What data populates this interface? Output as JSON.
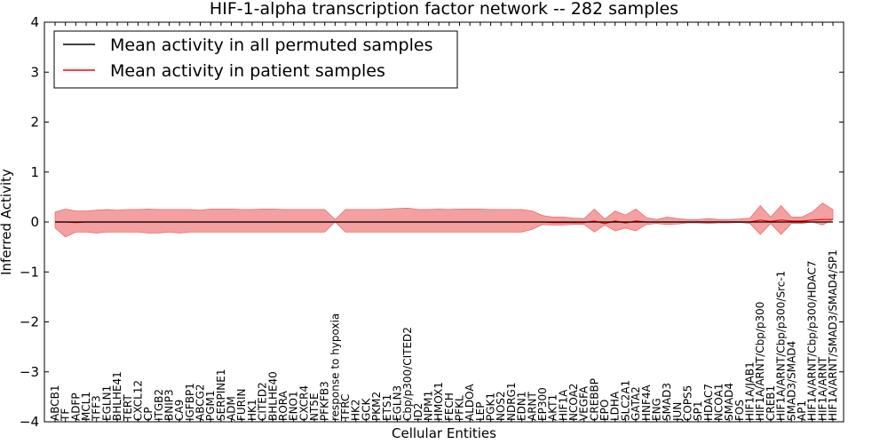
{
  "chart_data": {
    "type": "area",
    "title": "HIF-1-alpha transcription factor network -- 282 samples",
    "xlabel": "Cellular Entities",
    "ylabel": "Inferred Activity",
    "ylim": [
      -4,
      4
    ],
    "yticks": [
      -4,
      -3,
      -2,
      -1,
      0,
      1,
      2,
      3,
      4
    ],
    "ytick_labels": [
      "−4",
      "−3",
      "−2",
      "−1",
      "0",
      "1",
      "2",
      "3",
      "4"
    ],
    "grid": false,
    "legend_position": "top-left",
    "colors": {
      "permuted": "#000000",
      "patient": "#ff0000",
      "band": "#f08080",
      "perm_band": "#c8c8c8"
    },
    "categories": [
      "ABCB1",
      "TF",
      "ADFP",
      "MCL1",
      "TFF3",
      "EGLN1",
      "BHLHE41",
      "TERT",
      "CXCL12",
      "CP",
      "ITGB2",
      "BNIP3",
      "CA9",
      "IGFBP1",
      "ABCG2",
      "PGM1",
      "SERPINE1",
      "ADM",
      "FURIN",
      "HK1",
      "CITED2",
      "BHLHE40",
      "RORA",
      "ENO1",
      "CXCR4",
      "NT5E",
      "PFKFB3",
      "response to hypoxia",
      "TFRC",
      "HK2",
      "GCK",
      "PKM2",
      "ETS1",
      "EGLN3",
      "Cbp/p300/CITED2",
      "ID2",
      "NPM1",
      "HMOX1",
      "FECH",
      "PFKL",
      "ALDOA",
      "LEP",
      "PGK1",
      "NOS2",
      "NDRG1",
      "EDN1",
      "ARNT",
      "EP300",
      "AKT1",
      "HIF1A",
      "NCOA2",
      "VEGFA",
      "CREBBP",
      "EPO",
      "LDHA",
      "SLC2A1",
      "GATA2",
      "HNF4A",
      "ENG",
      "SMAD3",
      "JUN",
      "COPS5",
      "SP1",
      "HDAC7",
      "NCOA1",
      "SMAD4",
      "FOS",
      "HIF1A/JAB1",
      "HIF1A/ARNT/Cbp/p300",
      "CREB1",
      "HIF1A/ARNT/Cbp/p300/Src-1",
      "SMAD3/SMAD4",
      "AP1",
      "HIF1A/ARNT/Cbp/p300/HDAC7",
      "HIF1A/ARNT",
      "HIF1A/ARNT/SMAD3/SMAD4/SP1"
    ],
    "series": [
      {
        "name": "Mean activity in all permuted samples",
        "values": [
          0.0,
          0.0,
          0.0,
          0.0,
          0.0,
          0.0,
          0.0,
          0.0,
          0.0,
          0.0,
          0.0,
          0.0,
          0.0,
          0.0,
          0.0,
          0.0,
          0.0,
          0.0,
          0.0,
          0.0,
          0.0,
          0.0,
          0.0,
          0.0,
          0.0,
          0.0,
          0.0,
          0.0,
          0.0,
          0.0,
          0.0,
          0.0,
          0.0,
          0.0,
          0.0,
          0.0,
          0.0,
          0.0,
          0.0,
          0.0,
          0.0,
          0.0,
          0.0,
          0.0,
          0.0,
          0.0,
          0.0,
          0.0,
          0.0,
          0.0,
          0.0,
          0.0,
          0.0,
          0.0,
          0.0,
          0.0,
          0.0,
          0.0,
          0.0,
          0.0,
          0.0,
          0.0,
          0.0,
          0.0,
          0.0,
          0.0,
          0.0,
          0.0,
          0.0,
          0.0,
          0.0,
          0.0,
          0.0,
          0.0,
          0.0,
          0.0
        ]
      },
      {
        "name": "Mean activity in patient samples",
        "values": [
          0.0,
          0.0,
          -0.01,
          0.0,
          0.0,
          0.0,
          0.0,
          0.0,
          0.0,
          0.0,
          0.0,
          0.0,
          0.0,
          0.0,
          0.0,
          0.0,
          0.0,
          0.0,
          0.0,
          0.0,
          0.0,
          0.0,
          0.0,
          0.0,
          0.0,
          0.0,
          0.0,
          0.0,
          0.0,
          0.0,
          0.0,
          0.0,
          0.0,
          0.0,
          0.0,
          0.0,
          0.0,
          0.0,
          0.0,
          0.0,
          0.0,
          0.0,
          0.0,
          0.0,
          0.0,
          0.0,
          0.0,
          0.0,
          -0.01,
          -0.01,
          -0.01,
          -0.01,
          0.02,
          -0.03,
          0.02,
          -0.02,
          0.02,
          0.0,
          0.0,
          0.0,
          0.0,
          0.0,
          0.0,
          0.0,
          0.0,
          0.0,
          0.0,
          0.0,
          0.04,
          0.01,
          0.04,
          0.02,
          0.02,
          0.04,
          0.05,
          0.05
        ],
        "upper": [
          0.2,
          0.26,
          0.22,
          0.22,
          0.24,
          0.25,
          0.24,
          0.25,
          0.25,
          0.26,
          0.25,
          0.25,
          0.25,
          0.25,
          0.24,
          0.26,
          0.26,
          0.26,
          0.25,
          0.25,
          0.26,
          0.26,
          0.25,
          0.25,
          0.25,
          0.25,
          0.25,
          0.05,
          0.25,
          0.25,
          0.25,
          0.25,
          0.26,
          0.27,
          0.28,
          0.25,
          0.25,
          0.26,
          0.25,
          0.26,
          0.26,
          0.26,
          0.25,
          0.25,
          0.25,
          0.25,
          0.22,
          0.13,
          0.1,
          0.1,
          0.08,
          0.07,
          0.26,
          0.06,
          0.22,
          0.14,
          0.26,
          0.09,
          0.05,
          0.1,
          0.07,
          0.05,
          0.05,
          0.07,
          0.05,
          0.05,
          0.06,
          0.08,
          0.33,
          0.1,
          0.33,
          0.1,
          0.1,
          0.2,
          0.38,
          0.25
        ],
        "lower": [
          -0.12,
          -0.3,
          -0.2,
          -0.2,
          -0.22,
          -0.2,
          -0.2,
          -0.2,
          -0.2,
          -0.22,
          -0.22,
          -0.2,
          -0.22,
          -0.2,
          -0.2,
          -0.2,
          -0.2,
          -0.2,
          -0.2,
          -0.2,
          -0.2,
          -0.2,
          -0.2,
          -0.2,
          -0.2,
          -0.2,
          -0.2,
          0.0,
          -0.2,
          -0.2,
          -0.2,
          -0.2,
          -0.2,
          -0.2,
          -0.2,
          -0.2,
          -0.2,
          -0.2,
          -0.2,
          -0.2,
          -0.2,
          -0.2,
          -0.2,
          -0.2,
          -0.2,
          -0.2,
          -0.15,
          -0.05,
          -0.06,
          -0.06,
          -0.05,
          -0.05,
          -0.2,
          -0.06,
          -0.18,
          -0.12,
          -0.18,
          -0.05,
          -0.03,
          -0.05,
          -0.04,
          -0.02,
          -0.02,
          -0.03,
          -0.02,
          -0.02,
          -0.01,
          -0.03,
          -0.25,
          -0.03,
          -0.25,
          -0.03,
          -0.03,
          0.0,
          -0.06,
          0.05
        ]
      }
    ]
  }
}
